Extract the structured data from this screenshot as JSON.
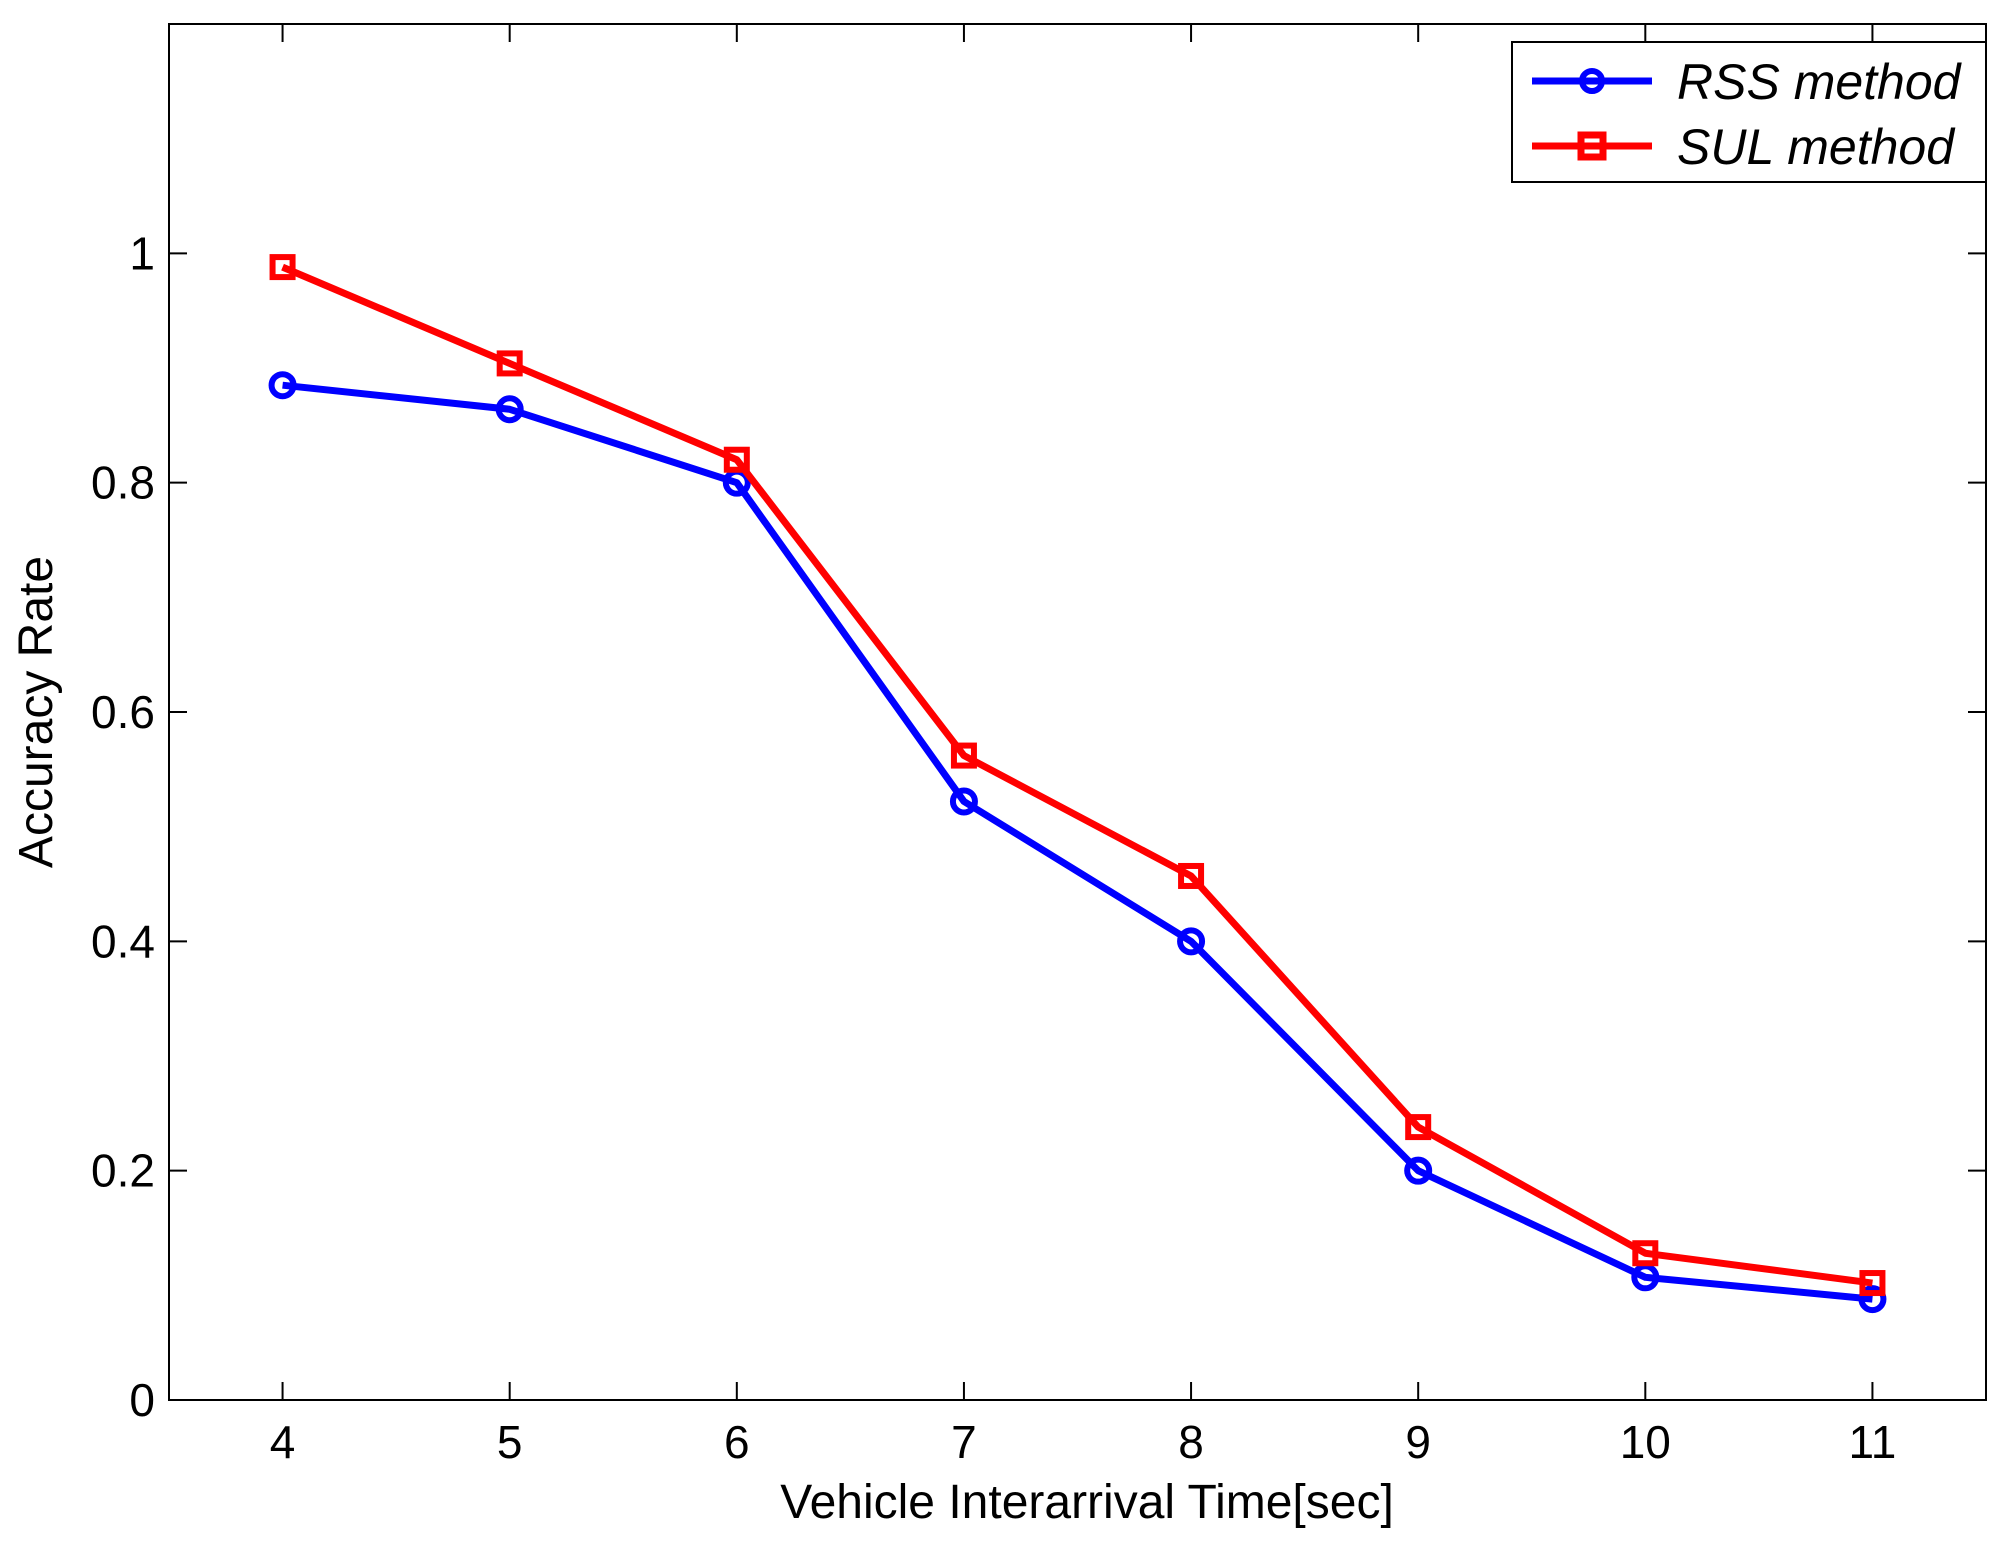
{
  "chart_data": {
    "type": "line",
    "title": "",
    "xlabel": "Vehicle Interarrival Time[sec]",
    "ylabel": "Accuracy Rate",
    "x": [
      4,
      5,
      6,
      7,
      8,
      9,
      10,
      11
    ],
    "xlim": [
      3.5,
      11.5
    ],
    "ylim": [
      0,
      1.2
    ],
    "xticks": [
      4,
      5,
      6,
      7,
      8,
      9,
      10,
      11
    ],
    "xtick_labels": [
      "4",
      "5",
      "6",
      "7",
      "8",
      "9",
      "10",
      "11"
    ],
    "yticks": [
      0,
      0.2,
      0.4,
      0.6,
      0.8,
      1
    ],
    "ytick_labels": [
      "0",
      "0.2",
      "0.4",
      "0.6",
      "0.8",
      "1"
    ],
    "grid": false,
    "legend_position": "top-right",
    "series": [
      {
        "name": "RSS method",
        "marker": "circle",
        "color": "#0000ff",
        "values": [
          0.885,
          0.864,
          0.8,
          0.522,
          0.4,
          0.2,
          0.107,
          0.088
        ]
      },
      {
        "name": "SUL method",
        "marker": "square",
        "color": "#ff0000",
        "values": [
          0.988,
          0.904,
          0.82,
          0.562,
          0.457,
          0.238,
          0.128,
          0.102
        ]
      }
    ]
  }
}
